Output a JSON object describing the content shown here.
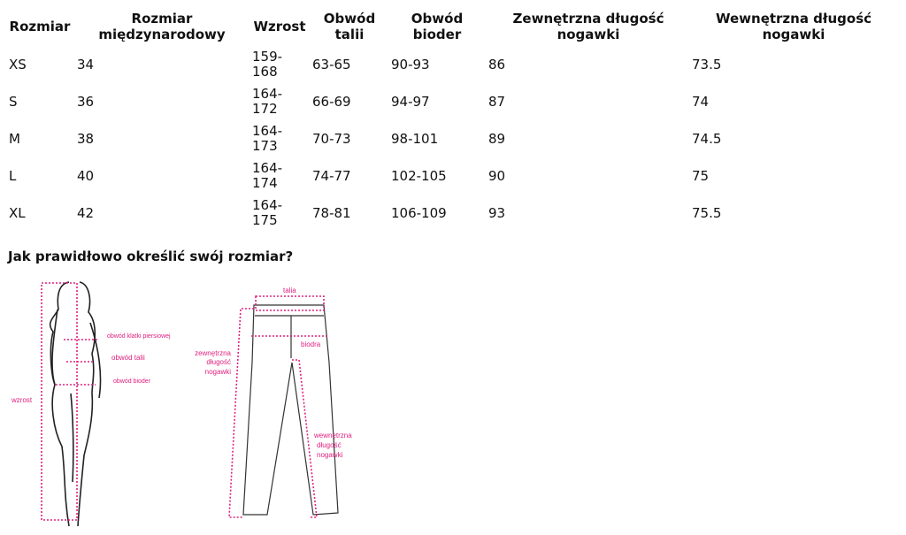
{
  "table": {
    "headers": [
      "Rozmiar",
      "Rozmiar międzynarodowy",
      "Wzrost",
      "Obwód talii",
      "Obwód bioder",
      "Zewnętrzna długość nogawki",
      "Wewnętrzna długość nogawki"
    ],
    "header_lines": [
      [
        "Rozmiar"
      ],
      [
        "Rozmiar",
        "międzynarodowy"
      ],
      [
        "Wzrost"
      ],
      [
        "Obwód",
        "talii"
      ],
      [
        "Obwód",
        "bioder"
      ],
      [
        "Zewnętrzna długość",
        "nogawki"
      ],
      [
        "Wewnętrzna długość",
        "nogawki"
      ]
    ],
    "rows": [
      [
        "XS",
        "34",
        "159-168",
        "63-65",
        "90-93",
        "86",
        "73.5"
      ],
      [
        "S",
        "36",
        "164-172",
        "66-69",
        "94-97",
        "87",
        "74"
      ],
      [
        "M",
        "38",
        "164-173",
        "70-73",
        "98-101",
        "89",
        "74.5"
      ],
      [
        "L",
        "40",
        "164-174",
        "74-77",
        "102-105",
        "90",
        "75"
      ],
      [
        "XL",
        "42",
        "164-175",
        "78-81",
        "106-109",
        "93",
        "75.5"
      ]
    ],
    "wzrost_lines": [
      [
        "159-",
        "168"
      ],
      [
        "164-",
        "172"
      ],
      [
        "164-",
        "173"
      ],
      [
        "164-",
        "174"
      ],
      [
        "164-",
        "175"
      ]
    ]
  },
  "guide": {
    "title": "Jak prawidłowo określić swój rozmiar?",
    "figure_labels": {
      "chest": "obwód klatki piersiowej",
      "waist": "obwód talii",
      "hips": "obwód bioder",
      "height": "wzrost"
    },
    "pants_labels": {
      "waist": "talia",
      "hips": "biodra",
      "outer": [
        "zewnętrzna",
        "długość",
        "nogawki"
      ],
      "inner": [
        "wewnętrzna",
        "długość",
        "nogawki"
      ]
    },
    "accent_color": "#e0207f"
  }
}
